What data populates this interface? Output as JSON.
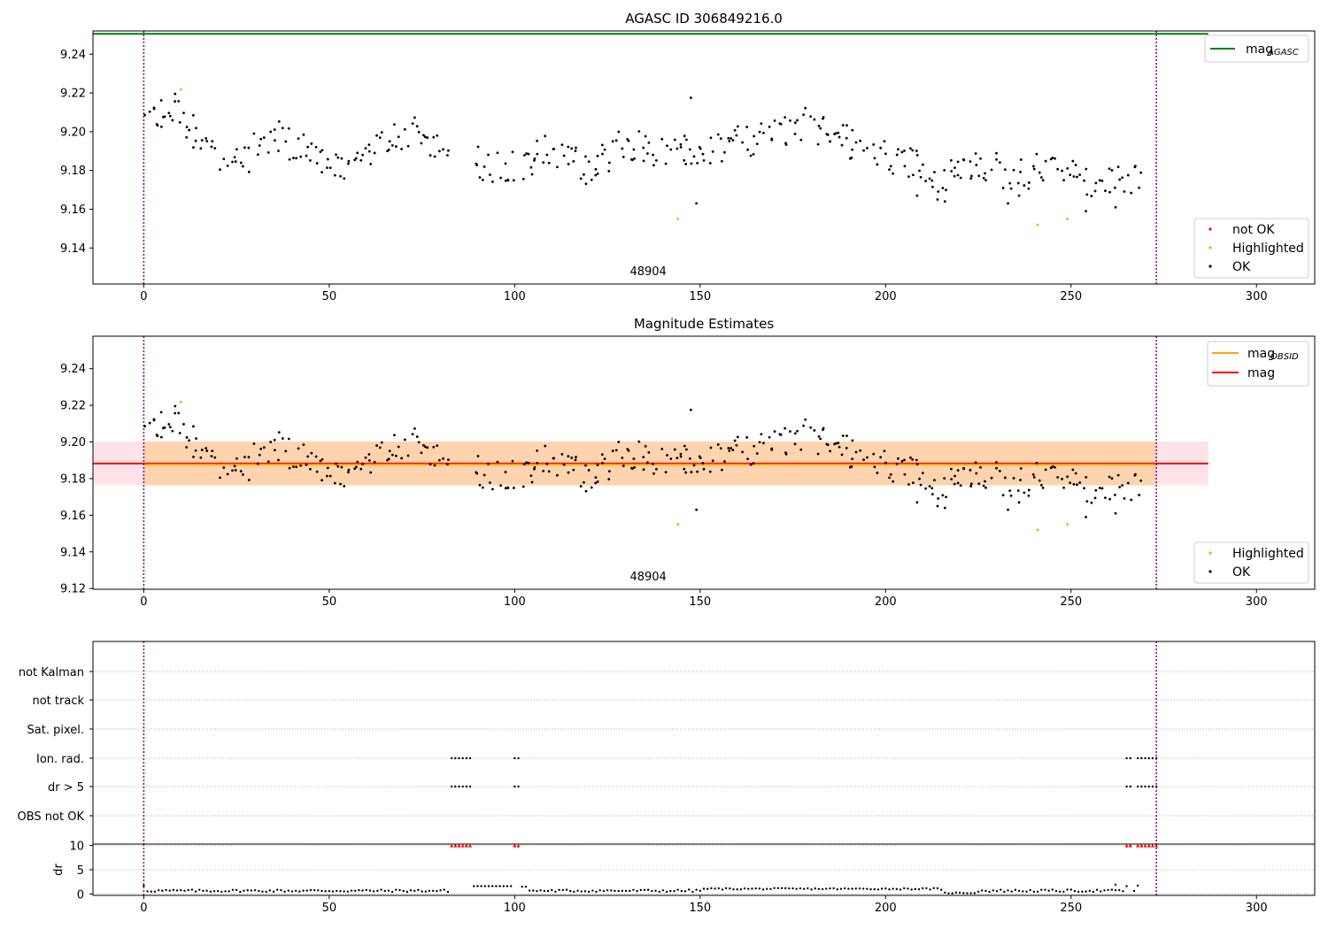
{
  "chart_data": [
    {
      "type": "scatter",
      "title": "AGASC ID 306849216.0",
      "xlim": [
        -13.7,
        315.7
      ],
      "ylim": [
        9.1214,
        9.252
      ],
      "xticks": [
        0,
        50,
        100,
        150,
        200,
        250,
        300
      ],
      "yticks": [
        9.14,
        9.16,
        9.18,
        9.2,
        9.22,
        9.24
      ],
      "ytick_labels": [
        "9.14",
        "9.16",
        "9.18",
        "9.20",
        "9.22",
        "9.24"
      ],
      "mag_agasc": 9.2505,
      "mag_agasc_xrange": [
        -13.7,
        287
      ],
      "obsid_label": "48904",
      "obsid_label_x": 136,
      "obs_boundaries": [
        0,
        273
      ],
      "legend_top": [
        {
          "label": "mag",
          "sub": "AGASC",
          "color": "#008000"
        }
      ],
      "legend_bottom": [
        {
          "label": "not OK",
          "color": "#ff0000"
        },
        {
          "label": "Highlighted",
          "color": "#ffa500"
        },
        {
          "label": "OK",
          "color": "#000000"
        }
      ]
    },
    {
      "type": "scatter",
      "title": "Magnitude Estimates",
      "xlim": [
        -13.7,
        315.7
      ],
      "ylim": [
        9.1196,
        9.2577
      ],
      "xticks": [
        0,
        50,
        100,
        150,
        200,
        250,
        300
      ],
      "yticks": [
        9.12,
        9.14,
        9.16,
        9.18,
        9.2,
        9.22,
        9.24
      ],
      "ytick_labels": [
        "9.12",
        "9.14",
        "9.16",
        "9.18",
        "9.20",
        "9.22",
        "9.24"
      ],
      "mag": 9.1882,
      "mag_band": [
        9.1763,
        9.2002
      ],
      "mag_xrange": [
        -13.7,
        287
      ],
      "mag_obsid": 9.1876,
      "mag_obsid_band": [
        9.1763,
        9.2002
      ],
      "mag_obsid_xrange": [
        0,
        273
      ],
      "obsid_label": "48904",
      "obsid_label_x": 136,
      "obs_boundaries": [
        0,
        273
      ],
      "legend_top": [
        {
          "label": "mag",
          "sub": "OBSID",
          "color": "#ffa500"
        },
        {
          "label": "mag",
          "sub": "",
          "color": "#ff0000"
        }
      ],
      "legend_bottom": [
        {
          "label": "Highlighted",
          "color": "#ffa500"
        },
        {
          "label": "OK",
          "color": "#000000"
        }
      ]
    },
    {
      "type": "scatter",
      "title": "",
      "xlim": [
        -13.7,
        315.7
      ],
      "xticks": [
        0,
        50,
        100,
        150,
        200,
        250,
        300
      ],
      "flags": [
        "not Kalman",
        "not track",
        "Sat. pixel.",
        "Ion. rad.",
        "dr > 5",
        "OBS not OK"
      ],
      "flag_x": [
        [],
        [],
        [],
        [
          83,
          84,
          85,
          86,
          87,
          88,
          100,
          101,
          265,
          266,
          268,
          269,
          270,
          271,
          272,
          273
        ],
        [
          83,
          84,
          85,
          86,
          87,
          88,
          100,
          101,
          265,
          266,
          268,
          269,
          270,
          271,
          272,
          273
        ],
        []
      ],
      "dr_ylim": [
        -0.3,
        10.3
      ],
      "dr_yticks": [
        0,
        5,
        10
      ],
      "dr_ylabel": "dr",
      "dr_clipped_x": [
        83,
        84,
        85,
        86,
        87,
        88,
        100,
        101,
        265,
        266,
        268,
        269,
        270,
        271,
        272,
        273
      ],
      "obs_boundaries": [
        0,
        273
      ]
    }
  ],
  "colors": {
    "ok": "#000000",
    "highlighted": "#ffa500",
    "not_ok": "#ff0000",
    "agasc_line": "#008000",
    "boundary": "#800080",
    "mag_band": "#ffc0cb",
    "obsid_band": "#ffa500"
  }
}
